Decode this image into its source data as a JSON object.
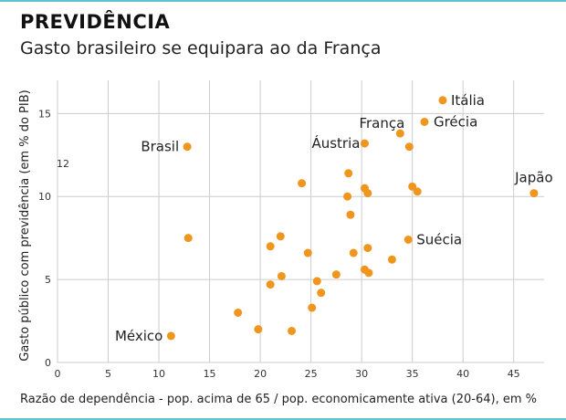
{
  "header": {
    "title": "PREVIDÊNCIA",
    "subtitle": "Gasto brasileiro se equipara ao da França"
  },
  "colors": {
    "accent": "#f0961e",
    "rule": "#5fc3cf",
    "grid": "#cccccc"
  },
  "chart_data": {
    "type": "scatter",
    "title": "PREVIDÊNCIA",
    "subtitle": "Gasto brasileiro se equipara ao da França",
    "xlabel": "Razão de dependência - pop. acima de 65 / pop. economicamente ativa (20-64), em %",
    "ylabel": "Gasto público com previdência (em % do PIB)",
    "xlim": [
      0,
      48
    ],
    "ylim": [
      0,
      17
    ],
    "xticks": [
      "0",
      "5",
      "10",
      "15",
      "20",
      "25",
      "30",
      "35",
      "40",
      "45"
    ],
    "yticks": [
      "0",
      "5",
      "10",
      "15"
    ],
    "stray_label": "12",
    "grid": true,
    "points": [
      {
        "x": 12.8,
        "y": 13.0,
        "label": "Brasil"
      },
      {
        "x": 11.2,
        "y": 1.6,
        "label": "México"
      },
      {
        "x": 38.0,
        "y": 15.8,
        "label": "Itália"
      },
      {
        "x": 33.8,
        "y": 13.8,
        "label": "França"
      },
      {
        "x": 36.2,
        "y": 14.5,
        "label": "Grécia"
      },
      {
        "x": 30.3,
        "y": 13.2,
        "label": "Áustria"
      },
      {
        "x": 47.0,
        "y": 10.2,
        "label": "Japão"
      },
      {
        "x": 34.6,
        "y": 7.4,
        "label": "Suécia"
      },
      {
        "x": 34.7,
        "y": 13.0,
        "label": ""
      },
      {
        "x": 28.7,
        "y": 11.4,
        "label": ""
      },
      {
        "x": 24.1,
        "y": 10.8,
        "label": ""
      },
      {
        "x": 28.6,
        "y": 10.0,
        "label": ""
      },
      {
        "x": 30.3,
        "y": 10.5,
        "label": ""
      },
      {
        "x": 30.6,
        "y": 10.2,
        "label": ""
      },
      {
        "x": 35.0,
        "y": 10.6,
        "label": ""
      },
      {
        "x": 35.5,
        "y": 10.3,
        "label": ""
      },
      {
        "x": 28.9,
        "y": 8.9,
        "label": ""
      },
      {
        "x": 12.9,
        "y": 7.5,
        "label": ""
      },
      {
        "x": 22.0,
        "y": 7.6,
        "label": ""
      },
      {
        "x": 21.0,
        "y": 7.0,
        "label": ""
      },
      {
        "x": 24.7,
        "y": 6.6,
        "label": ""
      },
      {
        "x": 29.2,
        "y": 6.6,
        "label": ""
      },
      {
        "x": 30.6,
        "y": 6.9,
        "label": ""
      },
      {
        "x": 33.0,
        "y": 6.2,
        "label": ""
      },
      {
        "x": 30.3,
        "y": 5.6,
        "label": ""
      },
      {
        "x": 30.7,
        "y": 5.4,
        "label": ""
      },
      {
        "x": 27.5,
        "y": 5.3,
        "label": ""
      },
      {
        "x": 22.1,
        "y": 5.2,
        "label": ""
      },
      {
        "x": 25.6,
        "y": 4.9,
        "label": ""
      },
      {
        "x": 21.0,
        "y": 4.7,
        "label": ""
      },
      {
        "x": 26.0,
        "y": 4.2,
        "label": ""
      },
      {
        "x": 25.1,
        "y": 3.3,
        "label": ""
      },
      {
        "x": 17.8,
        "y": 3.0,
        "label": ""
      },
      {
        "x": 19.8,
        "y": 2.0,
        "label": ""
      },
      {
        "x": 23.1,
        "y": 1.9,
        "label": ""
      }
    ]
  }
}
